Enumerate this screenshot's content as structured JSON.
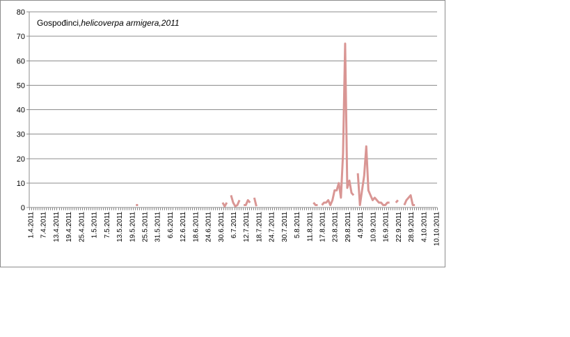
{
  "chart_data": {
    "type": "line",
    "title_plain": "Gospođinci,",
    "title_italic": "helicoverpa armigera,2011",
    "ylim": [
      0,
      80
    ],
    "yticks": [
      0,
      10,
      20,
      30,
      40,
      50,
      60,
      70,
      80
    ],
    "x_start": "2011-04-01",
    "x_end": "2011-10-10",
    "x_tick_labels": [
      "1.4.2011",
      "7.4.2011",
      "13.4.2011",
      "19.4.2011",
      "25.4.2011",
      "1.5.2011",
      "7.5.2011",
      "13.5.2011",
      "19.5.2011",
      "25.5.2011",
      "31.5.2011",
      "6.6.2011",
      "12.6.2011",
      "18.6.2011",
      "24.6.2011",
      "30.6.2011",
      "6.7.2011",
      "12.7.2011",
      "18.7.2011",
      "24.7.2011",
      "30.7.2011",
      "5.8.2011",
      "11.8.2011",
      "17.8.2011",
      "23.8.2011",
      "29.8.2011",
      "4.9.2011",
      "10.9.2011",
      "16.9.2011",
      "22.9.2011",
      "28.9.2011",
      "4.10.2011",
      "10.10.2011"
    ],
    "line_color": "#d99694",
    "grid": true,
    "series": [
      {
        "segments": [
          [
            [
              "2011-05-21",
              1
            ],
            [
              "2011-05-22",
              1
            ]
          ],
          [
            [
              "2011-07-01",
              2
            ],
            [
              "2011-07-02",
              0.5
            ],
            [
              "2011-07-03",
              2
            ]
          ],
          [
            [
              "2011-07-05",
              5
            ],
            [
              "2011-07-06",
              2
            ],
            [
              "2011-07-07",
              0.5
            ],
            [
              "2011-07-08",
              1
            ],
            [
              "2011-07-09",
              3
            ]
          ],
          [
            [
              "2011-07-11",
              1
            ],
            [
              "2011-07-12",
              1
            ],
            [
              "2011-07-13",
              3
            ],
            [
              "2011-07-14",
              2
            ]
          ],
          [
            [
              "2011-07-16",
              4
            ],
            [
              "2011-07-17",
              0.5
            ]
          ],
          [
            [
              "2011-08-13",
              2
            ],
            [
              "2011-08-14",
              1
            ],
            [
              "2011-08-15",
              1
            ]
          ],
          [
            [
              "2011-08-17",
              1
            ],
            [
              "2011-08-18",
              2
            ],
            [
              "2011-08-19",
              2
            ],
            [
              "2011-08-20",
              3
            ],
            [
              "2011-08-21",
              1
            ],
            [
              "2011-08-22",
              3
            ],
            [
              "2011-08-23",
              7
            ],
            [
              "2011-08-24",
              7
            ],
            [
              "2011-08-25",
              10
            ],
            [
              "2011-08-26",
              4
            ],
            [
              "2011-08-27",
              22
            ],
            [
              "2011-08-28",
              67
            ],
            [
              "2011-08-29",
              8
            ],
            [
              "2011-08-30",
              11
            ],
            [
              "2011-08-31",
              6
            ],
            [
              "2011-09-01",
              5
            ]
          ],
          [
            [
              "2011-09-03",
              14
            ],
            [
              "2011-09-04",
              1
            ],
            [
              "2011-09-05",
              7
            ],
            [
              "2011-09-06",
              13
            ],
            [
              "2011-09-07",
              25
            ],
            [
              "2011-09-08",
              7
            ],
            [
              "2011-09-09",
              5
            ],
            [
              "2011-09-10",
              3
            ],
            [
              "2011-09-11",
              4
            ],
            [
              "2011-09-12",
              3
            ],
            [
              "2011-09-13",
              2
            ],
            [
              "2011-09-14",
              2
            ],
            [
              "2011-09-15",
              1
            ],
            [
              "2011-09-16",
              1
            ],
            [
              "2011-09-17",
              2
            ],
            [
              "2011-09-18",
              2
            ]
          ],
          [
            [
              "2011-09-21",
              2
            ],
            [
              "2011-09-22",
              3
            ]
          ],
          [
            [
              "2011-09-25",
              1
            ],
            [
              "2011-09-26",
              3
            ],
            [
              "2011-09-27",
              4
            ],
            [
              "2011-09-28",
              5
            ],
            [
              "2011-09-29",
              1
            ],
            [
              "2011-09-30",
              1
            ]
          ]
        ]
      }
    ]
  }
}
